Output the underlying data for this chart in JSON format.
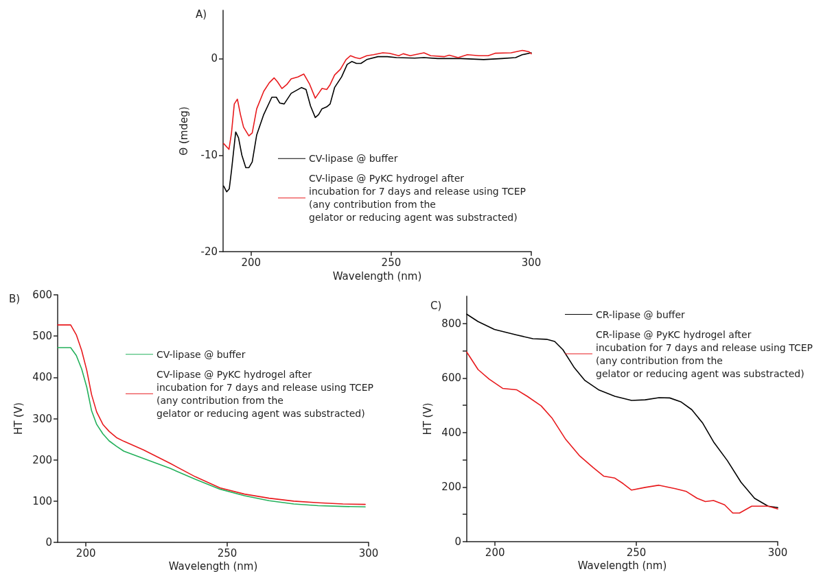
{
  "chart_data": [
    {
      "type": "line",
      "title": "A)",
      "xlabel": "Wavelength (nm)",
      "ylabel": "Θ (mdeg)",
      "xlim": [
        190,
        300
      ],
      "xticks": [
        200,
        250,
        300
      ],
      "ylim": [
        -20,
        5
      ],
      "yticks": [
        -20,
        -10,
        0
      ],
      "grid": false,
      "legend": "bottom right",
      "marker": "none",
      "line_style": "solid",
      "series": [
        {
          "name": "CV-lipase @ buffer",
          "color": "#000000",
          "x": [
            190.2,
            191.3,
            192.2,
            193,
            194.5,
            195.5,
            196.7,
            198.1,
            199.2,
            200.4,
            202,
            204.5,
            207.4,
            209,
            210.2,
            211.8,
            214.3,
            218,
            219.6,
            221.2,
            222.9,
            224.1,
            225.3,
            227,
            228.2,
            229.8,
            232.3,
            234.3,
            236,
            237.6,
            239.2,
            241.3,
            245.3,
            248.6,
            251.9,
            258.4,
            261.7,
            266.6,
            274.8,
            283,
            289.5,
            294.4,
            296.8,
            300
          ],
          "values": [
            -13.2,
            -13.8,
            -13.5,
            -11.6,
            -7.6,
            -8.2,
            -10,
            -11.3,
            -11.3,
            -10.7,
            -7.9,
            -5.8,
            -4,
            -4,
            -4.6,
            -4.7,
            -3.6,
            -3,
            -3.2,
            -4.9,
            -6.1,
            -5.8,
            -5.2,
            -5,
            -4.7,
            -3,
            -1.9,
            -0.6,
            -0.3,
            -0.5,
            -0.5,
            -0.1,
            0.2,
            0.2,
            0.1,
            0.05,
            0.1,
            0,
            0,
            -0.1,
            0,
            0.1,
            0.4,
            0.6
          ]
        },
        {
          "name": "CV-lipase @ PyKC hydrogel after\nincubation for 7 days and release using TCEP\n(any contribution from the\ngelator or reducing agent was substracted)",
          "color": "#e8191c",
          "x": [
            190.2,
            192.1,
            193,
            194,
            195.1,
            196.2,
            197.3,
            199.2,
            200.4,
            202,
            204.5,
            206.5,
            208.2,
            209.4,
            211,
            212.7,
            214.3,
            216.7,
            218.8,
            220.8,
            222.9,
            224.1,
            225.3,
            227,
            228.2,
            229.8,
            231.9,
            233.9,
            235.5,
            237.2,
            238.8,
            241.3,
            243.7,
            247,
            249.4,
            252.7,
            254.3,
            256.8,
            261.7,
            264.1,
            269,
            270.7,
            273.9,
            277.2,
            281.3,
            284.6,
            287.1,
            292.8,
            296.8,
            299.2,
            300
          ],
          "values": [
            -8.8,
            -9.4,
            -7.7,
            -4.7,
            -4.2,
            -5.8,
            -7.1,
            -8,
            -7.7,
            -5.2,
            -3.4,
            -2.5,
            -2,
            -2.4,
            -3.1,
            -2.7,
            -2.1,
            -1.9,
            -1.6,
            -2.6,
            -4.1,
            -3.6,
            -3.1,
            -3.2,
            -2.7,
            -1.7,
            -1.1,
            -0.1,
            0.3,
            0.1,
            0,
            0.3,
            0.4,
            0.6,
            0.55,
            0.3,
            0.5,
            0.3,
            0.6,
            0.3,
            0.2,
            0.35,
            0.1,
            0.4,
            0.3,
            0.3,
            0.55,
            0.6,
            0.85,
            0.7,
            0.5
          ]
        }
      ]
    },
    {
      "type": "line",
      "title": "B)",
      "xlabel": "Wavelength (nm)",
      "ylabel": "HT (V)",
      "xlim": [
        190,
        300
      ],
      "xticks": [
        200,
        250,
        300
      ],
      "ylim": [
        0,
        600
      ],
      "yticks": [
        0,
        100,
        200,
        300,
        400,
        500,
        600
      ],
      "grid": false,
      "legend": "right",
      "marker": "none",
      "line_style": "solid",
      "series": [
        {
          "name": "CV-lipase @ buffer",
          "color": "#22b05a",
          "x": [
            190,
            194.6,
            196.6,
            198.5,
            200.3,
            202,
            203.8,
            206,
            208.2,
            210.8,
            213.4,
            220.4,
            229.9,
            238.7,
            247.4,
            256.1,
            264.8,
            273.5,
            282.2,
            290.9,
            298.8
          ],
          "values": [
            472,
            472,
            453,
            420,
            376,
            319,
            286,
            263,
            246,
            233,
            221,
            203,
            179,
            153,
            129,
            113,
            101,
            93,
            89,
            87,
            86
          ]
        },
        {
          "name": "CV-lipase @ PyKC hydrogel after\nincubation for 7 days and release using TCEP\n(any contribution from the\ngelator or reducing agent was substracted)",
          "color": "#e8191c",
          "x": [
            190,
            194.6,
            196.6,
            198.5,
            200.3,
            202,
            203.8,
            206,
            208.2,
            210.8,
            213.4,
            220.4,
            229.9,
            238.7,
            247.4,
            256.1,
            264.8,
            273.5,
            282.2,
            290.9,
            298.8
          ],
          "values": [
            527,
            527,
            503,
            465,
            417,
            358,
            316,
            286,
            269,
            254,
            245,
            224,
            191,
            159,
            132,
            117,
            107,
            100,
            96,
            93,
            92
          ]
        }
      ]
    },
    {
      "type": "line",
      "title": "C)",
      "xlabel": "Wavelength (nm)",
      "ylabel": "HT (V)",
      "xlim": [
        190,
        300
      ],
      "xticks": [
        200,
        250,
        300
      ],
      "ylim": [
        0,
        900
      ],
      "yticks": [
        0,
        {
          "value": 100,
          "label": null
        },
        200,
        {
          "value": 300,
          "label": null
        },
        400,
        {
          "value": 500,
          "label": null
        },
        600,
        {
          "value": 700,
          "label": null
        },
        800
      ],
      "grid": false,
      "legend": "top right",
      "marker": "none",
      "line_style": "solid",
      "series": [
        {
          "name": "CR-lipase @ buffer",
          "color": "#000000",
          "x": [
            190,
            194,
            199.8,
            207.6,
            213.4,
            218.2,
            221.1,
            224,
            227.9,
            231.8,
            236.6,
            242.4,
            248.3,
            253.1,
            258,
            261.8,
            265.7,
            269.6,
            273.5,
            277.3,
            282.2,
            287,
            291.8,
            296.6,
            300
          ],
          "values": [
            834,
            807,
            778,
            758,
            744,
            742,
            734,
            704,
            640,
            591,
            557,
            533,
            518,
            520,
            528,
            527,
            513,
            484,
            434,
            366,
            297,
            218,
            159,
            130,
            125
          ]
        },
        {
          "name": "CR-lipase @ PyKC hydrogel after\nincubation for 7 days and release using TCEP\n(any contribution from the\ngelator or reducing agent was substracted)",
          "color": "#e8191c",
          "x": [
            190,
            194,
            197.9,
            202.7,
            207.6,
            211.4,
            216.3,
            220.1,
            225,
            229.8,
            234.7,
            238.5,
            242.4,
            245.3,
            248.3,
            253.1,
            258,
            263.8,
            267.7,
            271.5,
            274.4,
            277.3,
            281.2,
            284.1,
            286.5,
            290.8,
            296.6,
            300
          ],
          "values": [
            695,
            631,
            596,
            562,
            557,
            533,
            498,
            454,
            375,
            316,
            272,
            240,
            233,
            213,
            189,
            199,
            207,
            194,
            184,
            159,
            147,
            151,
            135,
            105,
            105,
            130,
            130,
            120
          ]
        }
      ]
    }
  ]
}
